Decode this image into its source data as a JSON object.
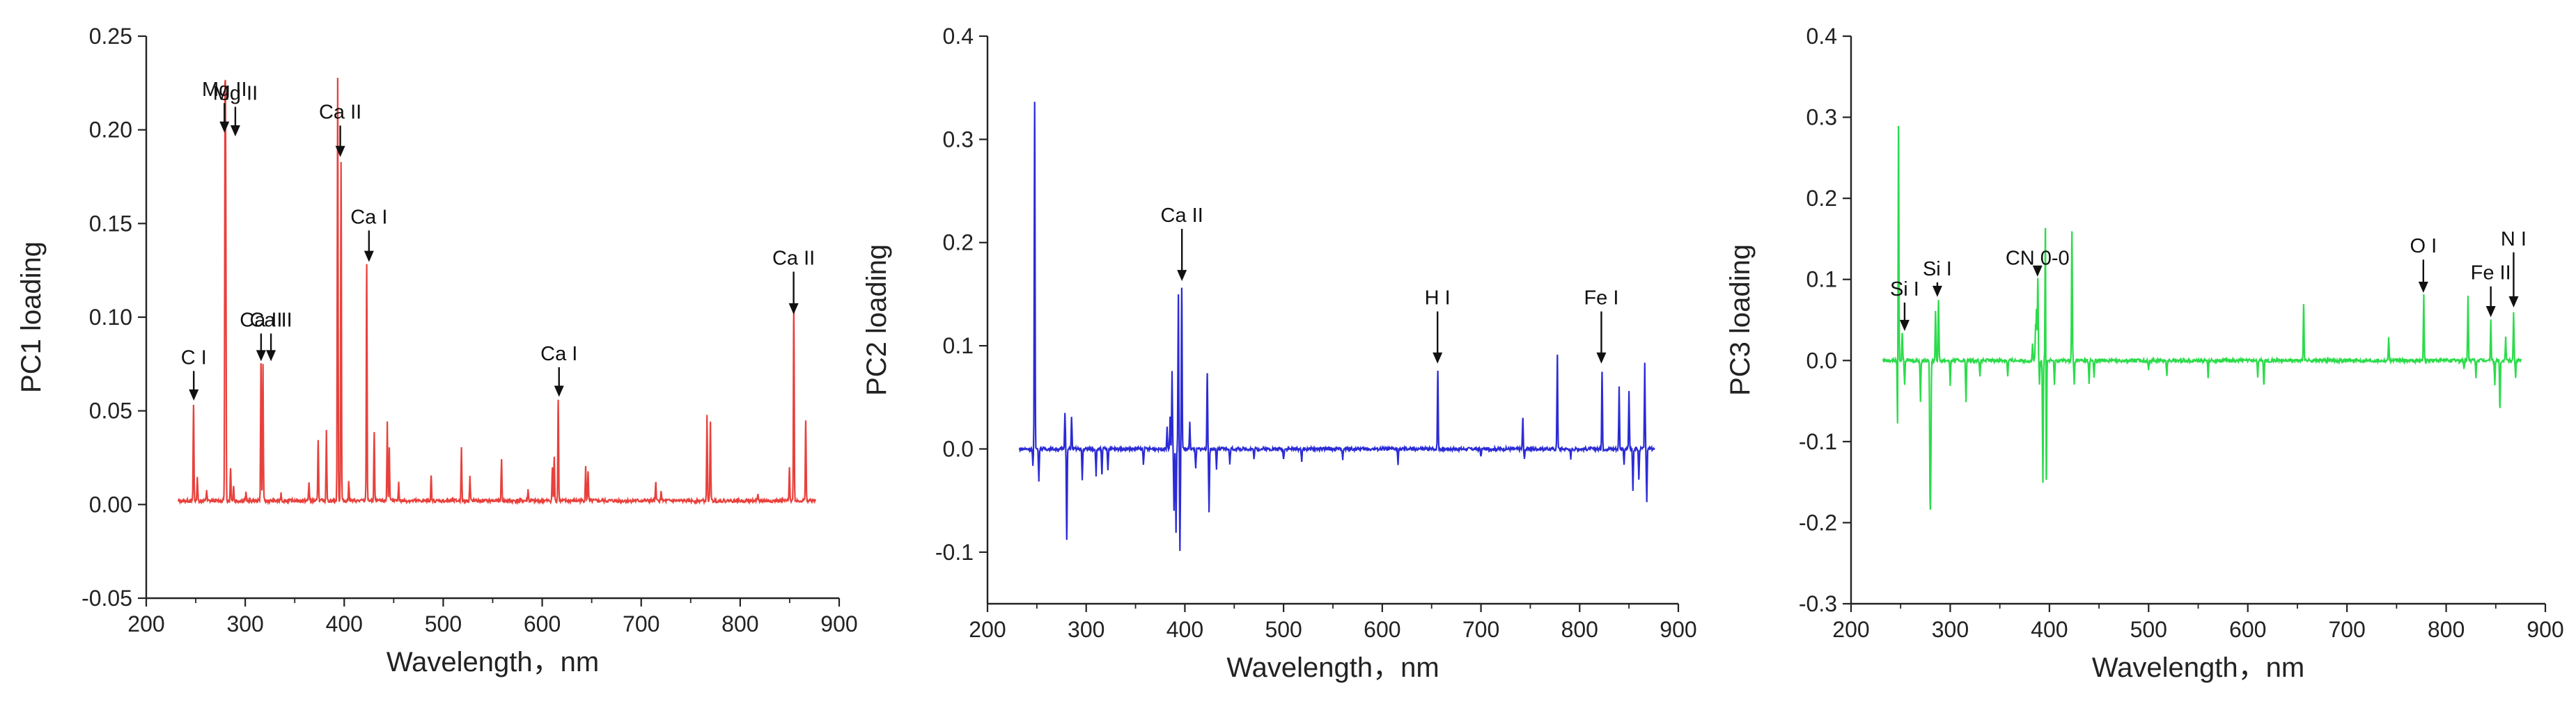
{
  "chart_data": [
    {
      "id": "pc1",
      "type": "line",
      "xlabel": "Wavelength，nm",
      "ylabel": "PC1 loading",
      "xlim": [
        200,
        900
      ],
      "ylim": [
        -0.05,
        0.25
      ],
      "xticks": [
        200,
        300,
        400,
        500,
        600,
        700,
        800,
        900
      ],
      "yticks": [
        -0.05,
        0.0,
        0.05,
        0.1,
        0.15,
        0.2,
        0.25
      ],
      "ytick_labels": [
        "-0.05",
        "0.00",
        "0.05",
        "0.10",
        "0.15",
        "0.20",
        "0.25"
      ],
      "grid": false,
      "color": "#e8413c",
      "baseline": 0.002,
      "peaks": [
        {
          "x": 247.8,
          "y": 0.053
        },
        {
          "x": 251.6,
          "y": 0.015
        },
        {
          "x": 261.0,
          "y": 0.008
        },
        {
          "x": 279.6,
          "y": 0.196
        },
        {
          "x": 280.3,
          "y": 0.15
        },
        {
          "x": 285.2,
          "y": 0.02
        },
        {
          "x": 288.2,
          "y": 0.01
        },
        {
          "x": 300.7,
          "y": 0.006
        },
        {
          "x": 315.9,
          "y": 0.075
        },
        {
          "x": 317.9,
          "y": 0.075
        },
        {
          "x": 336.2,
          "y": 0.006
        },
        {
          "x": 364.4,
          "y": 0.012
        },
        {
          "x": 373.7,
          "y": 0.035
        },
        {
          "x": 382.0,
          "y": 0.04
        },
        {
          "x": 393.4,
          "y": 0.228
        },
        {
          "x": 396.8,
          "y": 0.183
        },
        {
          "x": 404.6,
          "y": 0.012
        },
        {
          "x": 422.7,
          "y": 0.128
        },
        {
          "x": 430.3,
          "y": 0.038
        },
        {
          "x": 443.5,
          "y": 0.044
        },
        {
          "x": 445.5,
          "y": 0.03
        },
        {
          "x": 455.0,
          "y": 0.012
        },
        {
          "x": 487.8,
          "y": 0.015
        },
        {
          "x": 518.4,
          "y": 0.03
        },
        {
          "x": 527.0,
          "y": 0.015
        },
        {
          "x": 558.9,
          "y": 0.025
        },
        {
          "x": 585.7,
          "y": 0.008
        },
        {
          "x": 610.3,
          "y": 0.02
        },
        {
          "x": 612.2,
          "y": 0.025
        },
        {
          "x": 616.2,
          "y": 0.056
        },
        {
          "x": 643.9,
          "y": 0.02
        },
        {
          "x": 646.3,
          "y": 0.018
        },
        {
          "x": 714.8,
          "y": 0.012
        },
        {
          "x": 720.2,
          "y": 0.007
        },
        {
          "x": 766.5,
          "y": 0.047
        },
        {
          "x": 769.9,
          "y": 0.045
        },
        {
          "x": 818.0,
          "y": 0.005
        },
        {
          "x": 849.8,
          "y": 0.02
        },
        {
          "x": 854.2,
          "y": 0.107
        },
        {
          "x": 866.2,
          "y": 0.045
        }
      ],
      "annotations": [
        {
          "label": "C I",
          "x": 248,
          "y": 0.054,
          "label_y": 0.075
        },
        {
          "label": "Mg II",
          "x": 279,
          "y": 0.197,
          "label_y": 0.218
        },
        {
          "label": "Mg II",
          "x": 290,
          "y": 0.195,
          "label_y": 0.216
        },
        {
          "label": "Ca II",
          "x": 316,
          "y": 0.075,
          "label_y": 0.095
        },
        {
          "label": "Ca II",
          "x": 326,
          "y": 0.075,
          "label_y": 0.095
        },
        {
          "label": "Ca II",
          "x": 396,
          "y": 0.184,
          "label_y": 0.206
        },
        {
          "label": "Ca I",
          "x": 425,
          "y": 0.128,
          "label_y": 0.15
        },
        {
          "label": "Ca I",
          "x": 617,
          "y": 0.056,
          "label_y": 0.077
        },
        {
          "label": "Ca II",
          "x": 854,
          "y": 0.1,
          "label_y": 0.128
        }
      ]
    },
    {
      "id": "pc2",
      "type": "line",
      "xlabel": "Wavelength，nm",
      "ylabel": "PC2 loading",
      "xlim": [
        200,
        900
      ],
      "ylim": [
        -0.15,
        0.4
      ],
      "xticks": [
        200,
        300,
        400,
        500,
        600,
        700,
        800,
        900
      ],
      "yticks": [
        -0.1,
        0.0,
        0.1,
        0.2,
        0.3,
        0.4
      ],
      "ytick_labels": [
        "-0.1",
        "0.0",
        "0.1",
        "0.2",
        "0.3",
        "0.4"
      ],
      "grid": false,
      "color": "#2b2bd6",
      "baseline": 0.0,
      "peaks": [
        {
          "x": 246.0,
          "y": -0.017
        },
        {
          "x": 247.8,
          "y": 0.337
        },
        {
          "x": 252.0,
          "y": -0.03
        },
        {
          "x": 278.5,
          "y": 0.036
        },
        {
          "x": 280.3,
          "y": -0.088
        },
        {
          "x": 285.2,
          "y": 0.03
        },
        {
          "x": 296.0,
          "y": -0.03
        },
        {
          "x": 310.0,
          "y": -0.025
        },
        {
          "x": 315.9,
          "y": -0.025
        },
        {
          "x": 322.0,
          "y": -0.02
        },
        {
          "x": 358.0,
          "y": -0.015
        },
        {
          "x": 382.0,
          "y": 0.02
        },
        {
          "x": 385.0,
          "y": 0.03
        },
        {
          "x": 387.0,
          "y": 0.075
        },
        {
          "x": 389.0,
          "y": -0.06
        },
        {
          "x": 391.0,
          "y": -0.08
        },
        {
          "x": 393.4,
          "y": 0.15
        },
        {
          "x": 395.0,
          "y": -0.1
        },
        {
          "x": 396.8,
          "y": 0.157
        },
        {
          "x": 405.0,
          "y": 0.025
        },
        {
          "x": 411.0,
          "y": -0.02
        },
        {
          "x": 422.7,
          "y": 0.072
        },
        {
          "x": 424.5,
          "y": -0.06
        },
        {
          "x": 432.0,
          "y": -0.02
        },
        {
          "x": 445.5,
          "y": -0.015
        },
        {
          "x": 470.0,
          "y": -0.01
        },
        {
          "x": 500.0,
          "y": -0.01
        },
        {
          "x": 518.4,
          "y": -0.012
        },
        {
          "x": 560.0,
          "y": -0.01
        },
        {
          "x": 616.0,
          "y": -0.015
        },
        {
          "x": 656.3,
          "y": 0.075
        },
        {
          "x": 700.0,
          "y": -0.008
        },
        {
          "x": 742.4,
          "y": 0.03
        },
        {
          "x": 744.0,
          "y": -0.01
        },
        {
          "x": 777.4,
          "y": 0.092
        },
        {
          "x": 791.0,
          "y": -0.01
        },
        {
          "x": 822.7,
          "y": 0.075
        },
        {
          "x": 840.0,
          "y": 0.06
        },
        {
          "x": 845.0,
          "y": -0.015
        },
        {
          "x": 850.0,
          "y": 0.055
        },
        {
          "x": 854.0,
          "y": -0.04
        },
        {
          "x": 860.0,
          "y": -0.03
        },
        {
          "x": 866.0,
          "y": 0.082
        },
        {
          "x": 868.0,
          "y": -0.05
        }
      ],
      "annotations": [
        {
          "label": "Ca II",
          "x": 397,
          "y": 0.16,
          "label_y": 0.22
        },
        {
          "label": "H I",
          "x": 656,
          "y": 0.08,
          "label_y": 0.14
        },
        {
          "label": "Fe I",
          "x": 822,
          "y": 0.08,
          "label_y": 0.14
        }
      ]
    },
    {
      "id": "pc3",
      "type": "line",
      "xlabel": "Wavelength，nm",
      "ylabel": "PC3 loading",
      "xlim": [
        200,
        900
      ],
      "ylim": [
        -0.3,
        0.4
      ],
      "xticks": [
        200,
        300,
        400,
        500,
        600,
        700,
        800,
        900
      ],
      "yticks": [
        -0.3,
        -0.2,
        -0.1,
        0.0,
        0.1,
        0.2,
        0.3,
        0.4
      ],
      "ytick_labels": [
        "-0.3",
        "-0.2",
        "-0.1",
        "0.0",
        "0.1",
        "0.2",
        "0.3",
        "0.4"
      ],
      "grid": false,
      "color": "#2bdc4a",
      "baseline": 0.0,
      "peaks": [
        {
          "x": 247.0,
          "y": -0.1
        },
        {
          "x": 247.8,
          "y": 0.3
        },
        {
          "x": 251.6,
          "y": 0.035
        },
        {
          "x": 254.0,
          "y": -0.03
        },
        {
          "x": 270.0,
          "y": -0.05
        },
        {
          "x": 279.6,
          "y": -0.145
        },
        {
          "x": 280.3,
          "y": -0.13
        },
        {
          "x": 285.2,
          "y": 0.06
        },
        {
          "x": 288.2,
          "y": 0.075
        },
        {
          "x": 300.0,
          "y": -0.03
        },
        {
          "x": 315.9,
          "y": -0.05
        },
        {
          "x": 330.0,
          "y": -0.02
        },
        {
          "x": 358.0,
          "y": -0.02
        },
        {
          "x": 383.0,
          "y": 0.02
        },
        {
          "x": 386.0,
          "y": 0.04
        },
        {
          "x": 387.0,
          "y": 0.06
        },
        {
          "x": 388.3,
          "y": 0.1
        },
        {
          "x": 390.0,
          "y": -0.03
        },
        {
          "x": 393.4,
          "y": -0.15
        },
        {
          "x": 396.0,
          "y": 0.18
        },
        {
          "x": 396.8,
          "y": -0.165
        },
        {
          "x": 405.0,
          "y": -0.03
        },
        {
          "x": 422.7,
          "y": 0.16
        },
        {
          "x": 425.0,
          "y": -0.03
        },
        {
          "x": 440.0,
          "y": -0.03
        },
        {
          "x": 445.0,
          "y": -0.02
        },
        {
          "x": 500.0,
          "y": -0.012
        },
        {
          "x": 518.4,
          "y": -0.02
        },
        {
          "x": 560.0,
          "y": -0.02
        },
        {
          "x": 610.0,
          "y": -0.02
        },
        {
          "x": 616.2,
          "y": -0.03
        },
        {
          "x": 656.3,
          "y": 0.07
        },
        {
          "x": 742.0,
          "y": 0.03
        },
        {
          "x": 777.4,
          "y": 0.08
        },
        {
          "x": 818.0,
          "y": -0.01
        },
        {
          "x": 822.0,
          "y": 0.08
        },
        {
          "x": 830.0,
          "y": -0.02
        },
        {
          "x": 845.0,
          "y": 0.05
        },
        {
          "x": 849.0,
          "y": -0.03
        },
        {
          "x": 854.2,
          "y": -0.06
        },
        {
          "x": 860.0,
          "y": 0.03
        },
        {
          "x": 868.0,
          "y": 0.06
        },
        {
          "x": 870.0,
          "y": -0.02
        }
      ],
      "annotations": [
        {
          "label": "Si I",
          "x": 254,
          "y": 0.033,
          "label_y": 0.08
        },
        {
          "label": "Si I",
          "x": 287,
          "y": 0.075,
          "label_y": 0.105
        },
        {
          "label": "CN 0-0",
          "x": 388,
          "y": 0.1,
          "label_y": 0.118
        },
        {
          "label": "O I",
          "x": 777,
          "y": 0.08,
          "label_y": 0.133
        },
        {
          "label": "Fe II",
          "x": 845,
          "y": 0.05,
          "label_y": 0.1
        },
        {
          "label": "N I",
          "x": 868,
          "y": 0.062,
          "label_y": 0.142
        }
      ]
    }
  ]
}
